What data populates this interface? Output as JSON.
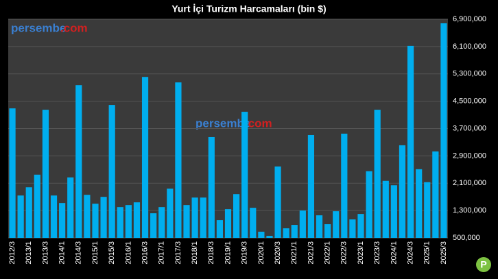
{
  "chart_data": {
    "type": "bar",
    "title": "Yurt İçi Turizm Harcamaları (bin $)",
    "watermark": [
      "persembe",
      ".com"
    ],
    "categories": [
      "2012/3",
      null,
      "2013/1",
      null,
      "2013/3",
      null,
      "2014/1",
      null,
      "2014/3",
      null,
      "2015/1",
      null,
      "2015/3",
      null,
      "2016/1",
      null,
      "2016/3",
      null,
      "2017/1",
      null,
      "2017/3",
      null,
      "2018/1",
      null,
      "2018/3",
      null,
      "2019/1",
      null,
      "2019/3",
      null,
      "2020/1",
      null,
      "2020/3",
      null,
      "2021/1",
      null,
      "2021/3",
      null,
      "2022/1",
      null,
      "2022/3",
      null,
      "2023/1",
      null,
      "2023/3",
      null,
      "2024/1",
      null,
      "2024/3",
      null,
      "2025/1",
      null,
      "2025/3"
    ],
    "values": [
      4290000,
      1740000,
      1980000,
      2350000,
      4250000,
      1740000,
      1520000,
      2270000,
      4970000,
      1760000,
      1500000,
      1700000,
      4390000,
      1400000,
      1460000,
      1540000,
      5210000,
      1220000,
      1400000,
      1940000,
      5050000,
      1460000,
      1680000,
      1680000,
      3450000,
      1020000,
      1340000,
      1780000,
      4190000,
      1380000,
      680000,
      560000,
      2590000,
      780000,
      880000,
      1300000,
      3510000,
      1160000,
      900000,
      1280000,
      3550000,
      1040000,
      1200000,
      2450000,
      4250000,
      2170000,
      2040000,
      3210000,
      6120000,
      2510000,
      2130000,
      3030000,
      6780000
    ],
    "color": "#00aeef",
    "ylim": [
      500000,
      6900000
    ],
    "yticks": [
      {
        "value": 500000,
        "label": "500,000"
      },
      {
        "value": 1300000,
        "label": "1,300,000"
      },
      {
        "value": 2100000,
        "label": "2,100,000"
      },
      {
        "value": 2900000,
        "label": "2,900,000"
      },
      {
        "value": 3700000,
        "label": "3,700,000"
      },
      {
        "value": 4500000,
        "label": "4,500,000"
      },
      {
        "value": 5300000,
        "label": "5,300,000"
      },
      {
        "value": 6100000,
        "label": "6,100,000"
      },
      {
        "value": 6900000,
        "label": "6,900,000"
      }
    ],
    "grid": true
  }
}
